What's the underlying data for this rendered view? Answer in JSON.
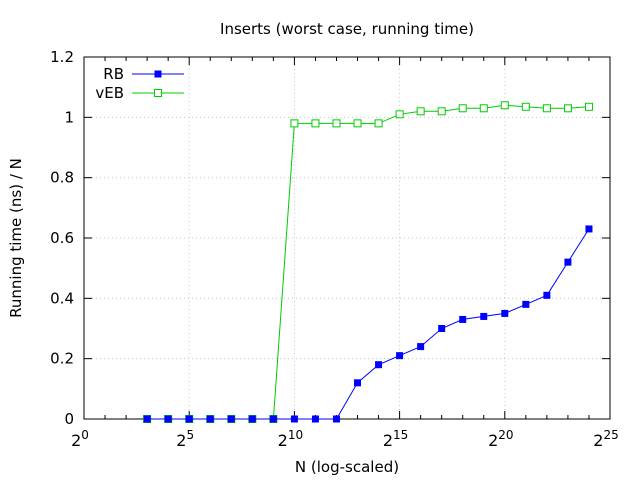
{
  "chart_data": {
    "type": "line",
    "title": "Inserts (worst case, running time)",
    "xlabel": "N (log-scaled)",
    "ylabel": "Running time (ns) / N",
    "x_scale": "log2",
    "x_tick_base": "2",
    "xticks": [
      "0",
      "5",
      "10",
      "15",
      "20",
      "25"
    ],
    "xlim_exponent": [
      0,
      25
    ],
    "yticks": [
      "0",
      "0.2",
      "0.4",
      "0.6",
      "0.8",
      "1",
      "1.2"
    ],
    "ylim": [
      0,
      1.2
    ],
    "grid": true,
    "legend_position": "top-left",
    "series": [
      {
        "name": "RB",
        "color": "#0000ff",
        "marker": "filled-square",
        "x_exponent": [
          3,
          4,
          5,
          6,
          7,
          8,
          9,
          10,
          11,
          12,
          13,
          14,
          15,
          16,
          17,
          18,
          19,
          20,
          21,
          22,
          23,
          24
        ],
        "values": [
          0,
          0,
          0,
          0,
          0,
          0,
          0,
          0,
          0,
          0,
          0.12,
          0.18,
          0.21,
          0.24,
          0.3,
          0.33,
          0.34,
          0.35,
          0.38,
          0.41,
          0.52,
          0.63
        ]
      },
      {
        "name": "vEB",
        "color": "#00cc00",
        "marker": "open-square",
        "x_exponent": [
          3,
          4,
          5,
          6,
          7,
          8,
          9,
          10,
          11,
          12,
          13,
          14,
          15,
          16,
          17,
          18,
          19,
          20,
          21,
          22,
          23,
          24
        ],
        "values": [
          0,
          0,
          0,
          0,
          0,
          0,
          0,
          0.98,
          0.98,
          0.98,
          0.98,
          0.98,
          1.01,
          1.02,
          1.02,
          1.03,
          1.03,
          1.04,
          1.035,
          1.03,
          1.03,
          1.035
        ]
      }
    ]
  }
}
